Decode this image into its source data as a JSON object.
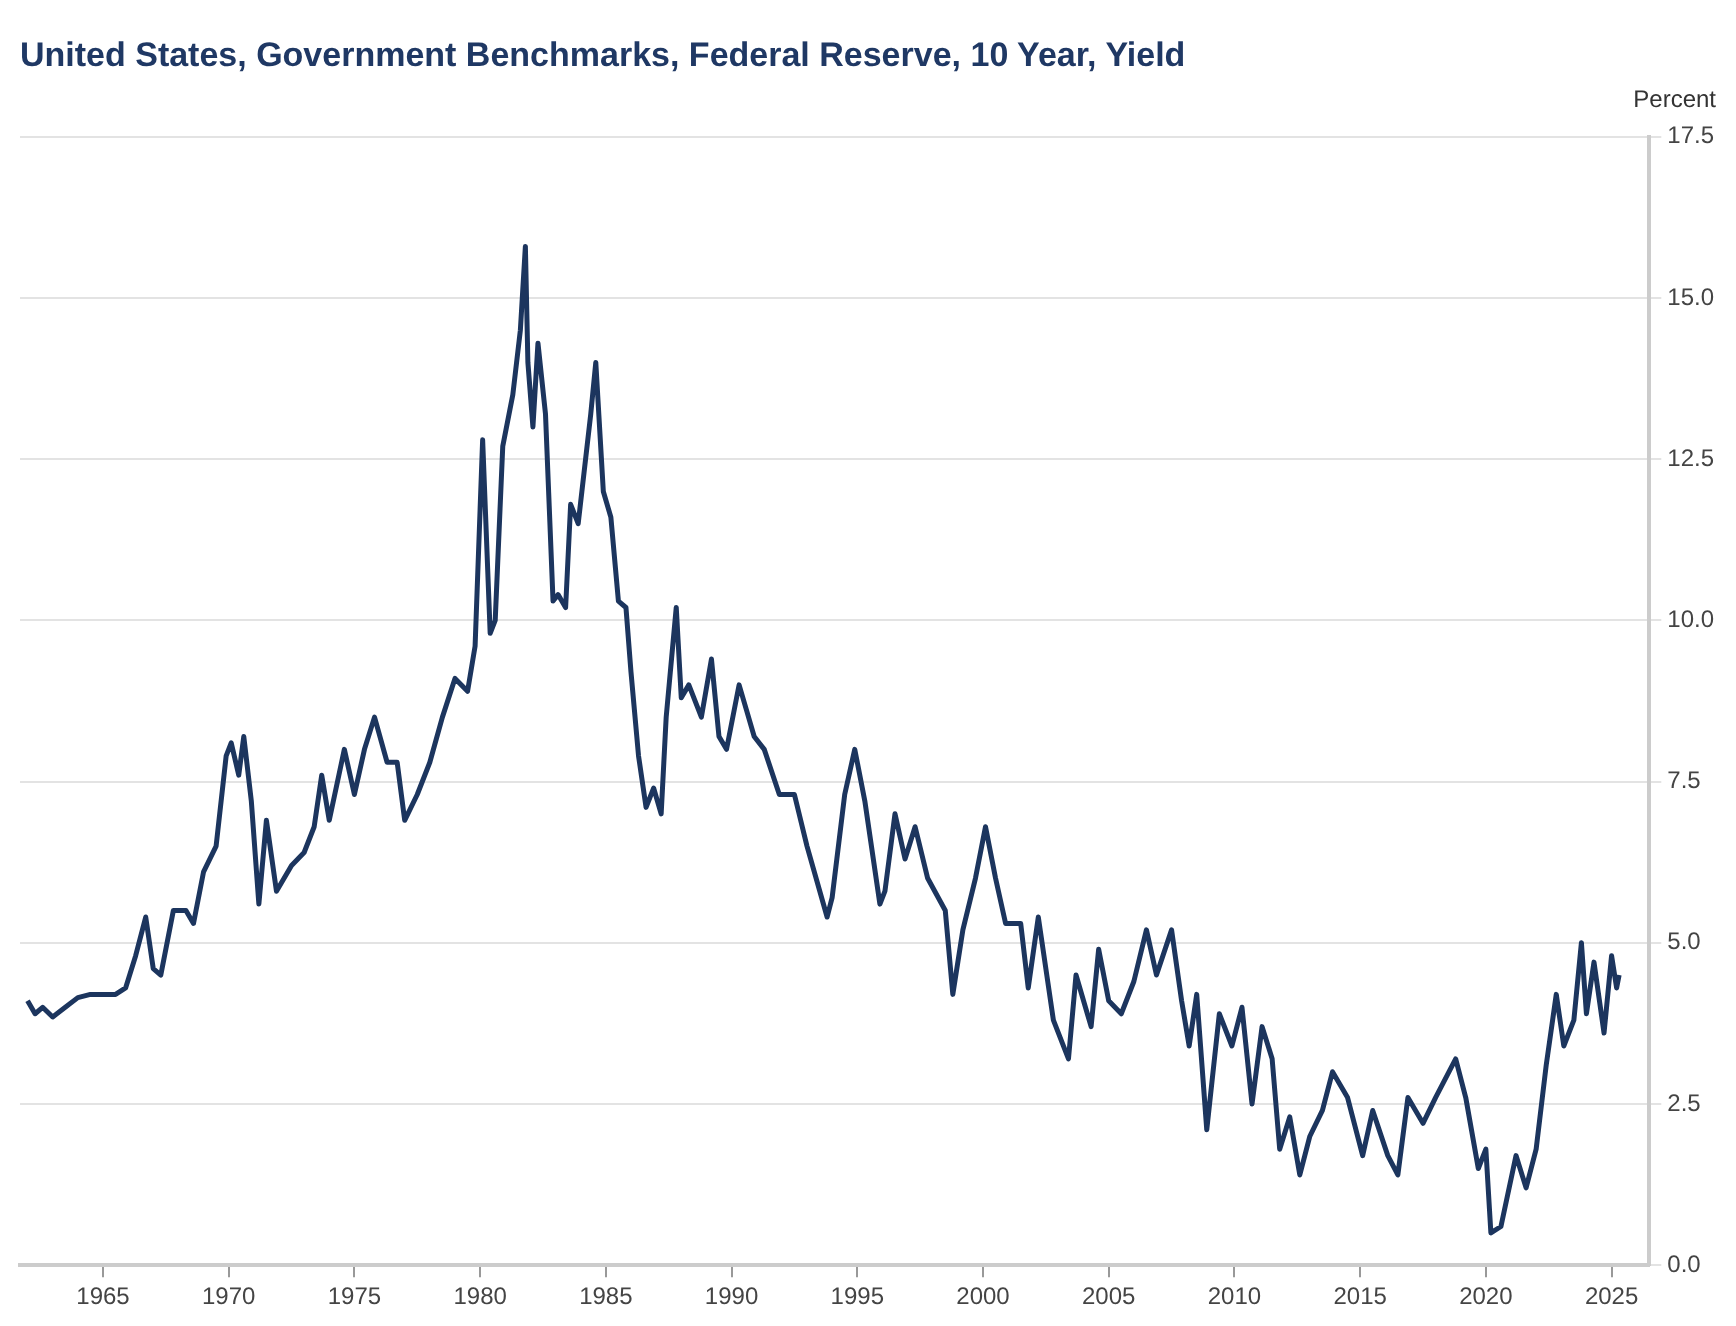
{
  "chart_data": {
    "type": "line",
    "title": "United States, Government Benchmarks, Federal Reserve, 10 Year, Yield",
    "ylabel": "Percent",
    "x": [
      1962.0,
      1962.3,
      1962.6,
      1963.0,
      1963.5,
      1964.0,
      1964.5,
      1965.0,
      1965.5,
      1965.9,
      1966.3,
      1966.7,
      1967.0,
      1967.3,
      1967.8,
      1968.3,
      1968.6,
      1969.0,
      1969.5,
      1969.9,
      1970.1,
      1970.4,
      1970.6,
      1970.9,
      1971.2,
      1971.5,
      1971.9,
      1972.5,
      1973.0,
      1973.4,
      1973.7,
      1974.0,
      1974.6,
      1975.0,
      1975.4,
      1975.8,
      1976.3,
      1976.7,
      1977.0,
      1977.5,
      1978.0,
      1978.5,
      1979.0,
      1979.5,
      1979.8,
      1980.1,
      1980.4,
      1980.6,
      1980.9,
      1981.3,
      1981.6,
      1981.8,
      1981.9,
      1982.1,
      1982.3,
      1982.6,
      1982.9,
      1983.1,
      1983.4,
      1983.6,
      1983.9,
      1984.4,
      1984.6,
      1984.9,
      1985.2,
      1985.5,
      1985.8,
      1986.0,
      1986.3,
      1986.6,
      1986.9,
      1987.2,
      1987.4,
      1987.8,
      1988.0,
      1988.3,
      1988.8,
      1989.2,
      1989.5,
      1989.8,
      1990.3,
      1990.6,
      1990.9,
      1991.3,
      1991.9,
      1992.5,
      1993.0,
      1993.8,
      1994.0,
      1994.5,
      1994.9,
      1995.3,
      1995.9,
      1996.1,
      1996.5,
      1996.9,
      1997.3,
      1997.8,
      1998.5,
      1998.8,
      1999.2,
      1999.7,
      2000.1,
      2000.5,
      2000.9,
      2001.5,
      2001.8,
      2002.2,
      2002.8,
      2003.4,
      2003.7,
      2004.3,
      2004.6,
      2005.0,
      2005.5,
      2006.0,
      2006.5,
      2006.9,
      2007.5,
      2007.9,
      2008.2,
      2008.5,
      2008.9,
      2009.4,
      2009.9,
      2010.3,
      2010.7,
      2011.1,
      2011.5,
      2011.8,
      2012.2,
      2012.6,
      2013.0,
      2013.5,
      2013.9,
      2014.5,
      2015.1,
      2015.5,
      2016.1,
      2016.5,
      2016.9,
      2017.5,
      2018.0,
      2018.8,
      2019.2,
      2019.7,
      2020.0,
      2020.2,
      2020.6,
      2021.2,
      2021.6,
      2022.0,
      2022.4,
      2022.8,
      2023.1,
      2023.5,
      2023.8,
      2024.0,
      2024.3,
      2024.7,
      2025.0,
      2025.2,
      2025.3
    ],
    "series": [
      {
        "color": "#1c355e",
        "values": [
          4.1,
          3.9,
          4.0,
          3.85,
          4.0,
          4.15,
          4.2,
          4.2,
          4.2,
          4.3,
          4.8,
          5.4,
          4.6,
          4.5,
          5.5,
          5.5,
          5.3,
          6.1,
          6.5,
          7.9,
          8.1,
          7.6,
          8.2,
          7.2,
          5.6,
          6.9,
          5.8,
          6.2,
          6.4,
          6.8,
          7.6,
          6.9,
          8.0,
          7.3,
          8.0,
          8.5,
          7.8,
          7.8,
          6.9,
          7.3,
          7.8,
          8.5,
          9.1,
          8.9,
          9.6,
          12.8,
          9.8,
          10.0,
          12.7,
          13.5,
          14.5,
          15.8,
          14.0,
          13.0,
          14.3,
          13.2,
          10.3,
          10.4,
          10.2,
          11.8,
          11.5,
          13.2,
          14.0,
          12.0,
          11.6,
          10.3,
          10.2,
          9.2,
          7.9,
          7.1,
          7.4,
          7.0,
          8.5,
          10.2,
          8.8,
          9.0,
          8.5,
          9.4,
          8.2,
          8.0,
          9.0,
          8.6,
          8.2,
          8.0,
          7.3,
          7.3,
          6.5,
          5.4,
          5.7,
          7.3,
          8.0,
          7.2,
          5.6,
          5.8,
          7.0,
          6.3,
          6.8,
          6.0,
          5.5,
          4.2,
          5.2,
          6.0,
          6.8,
          6.0,
          5.3,
          5.3,
          4.3,
          5.4,
          3.8,
          3.2,
          4.5,
          3.7,
          4.9,
          4.1,
          3.9,
          4.4,
          5.2,
          4.5,
          5.2,
          4.1,
          3.4,
          4.2,
          2.1,
          3.9,
          3.4,
          4.0,
          2.5,
          3.7,
          3.2,
          1.8,
          2.3,
          1.4,
          2.0,
          2.4,
          3.0,
          2.6,
          1.7,
          2.4,
          1.7,
          1.4,
          2.6,
          2.2,
          2.6,
          3.2,
          2.6,
          1.5,
          1.8,
          0.5,
          0.6,
          1.7,
          1.2,
          1.8,
          3.1,
          4.2,
          3.4,
          3.8,
          5.0,
          3.9,
          4.7,
          3.6,
          4.8,
          4.3,
          4.5
        ]
      }
    ],
    "xlim": [
      1961.7,
      2026.5
    ],
    "xticks": [
      1965,
      1970,
      1975,
      1980,
      1985,
      1990,
      1995,
      2000,
      2005,
      2010,
      2015,
      2020,
      2025
    ],
    "ylim": [
      0,
      17.5
    ],
    "yticks": [
      {
        "value": 0,
        "label": "0.0"
      },
      {
        "value": 2.5,
        "label": "2.5"
      },
      {
        "value": 5,
        "label": "5.0"
      },
      {
        "value": 7.5,
        "label": "7.5"
      },
      {
        "value": 10,
        "label": "10.0"
      },
      {
        "value": 12.5,
        "label": "12.5"
      },
      {
        "value": 15,
        "label": "15.0"
      },
      {
        "value": 17.5,
        "label": "17.5"
      }
    ],
    "grid": "y",
    "legend": false,
    "marker": "none",
    "line_style": "solid"
  }
}
